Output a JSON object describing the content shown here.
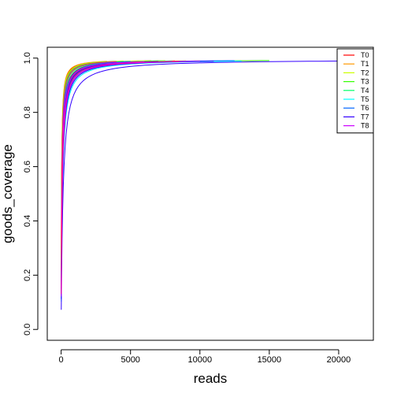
{
  "chart_data": {
    "type": "line",
    "title": "",
    "xlabel": "reads",
    "ylabel": "goods_coverage",
    "xlim": [
      -1000,
      22500
    ],
    "ylim": [
      -0.04,
      1.04
    ],
    "x_ticks": [
      0,
      5000,
      10000,
      15000,
      20000
    ],
    "x_tick_labels": [
      "0",
      "5000",
      "10000",
      "15000",
      "20000"
    ],
    "y_ticks": [
      0.0,
      0.2,
      0.4,
      0.6,
      0.8,
      1.0
    ],
    "y_tick_labels": [
      "0.0",
      "0.2",
      "0.4",
      "0.6",
      "0.8",
      "1.0"
    ],
    "grid": false,
    "legend_position": "top-right",
    "series": [
      {
        "name": "T0",
        "color": "#FF0000",
        "curves": [
          {
            "max_reads": 2300,
            "k": 0.06
          },
          {
            "max_reads": 3300,
            "k": 0.055
          },
          {
            "max_reads": 5500,
            "k": 0.035
          },
          {
            "max_reads": 8200,
            "k": 0.032
          },
          {
            "max_reads": 10000,
            "k": 0.026
          }
        ]
      },
      {
        "name": "T1",
        "color": "#FF9900",
        "curves": [
          {
            "max_reads": 3300,
            "k": 0.065
          },
          {
            "max_reads": 6500,
            "k": 0.045
          },
          {
            "max_reads": 9000,
            "k": 0.03
          }
        ]
      },
      {
        "name": "T2",
        "color": "#CCFF00",
        "curves": [
          {
            "max_reads": 4500,
            "k": 0.055
          },
          {
            "max_reads": 7500,
            "k": 0.04
          }
        ]
      },
      {
        "name": "T3",
        "color": "#33FF00",
        "curves": [
          {
            "max_reads": 15000,
            "k": 0.022
          },
          {
            "max_reads": 7000,
            "k": 0.035
          },
          {
            "max_reads": 4000,
            "k": 0.05
          }
        ]
      },
      {
        "name": "T4",
        "color": "#00FF66",
        "curves": [
          {
            "max_reads": 8000,
            "k": 0.03
          },
          {
            "max_reads": 5000,
            "k": 0.042
          }
        ]
      },
      {
        "name": "T5",
        "color": "#00FFFF",
        "curves": [
          {
            "max_reads": 13000,
            "k": 0.018
          },
          {
            "max_reads": 9000,
            "k": 0.02
          },
          {
            "max_reads": 6000,
            "k": 0.03
          }
        ]
      },
      {
        "name": "T6",
        "color": "#0066FF",
        "curves": [
          {
            "max_reads": 12500,
            "k": 0.025
          },
          {
            "max_reads": 9500,
            "k": 0.022
          },
          {
            "max_reads": 5000,
            "k": 0.035
          }
        ]
      },
      {
        "name": "T7",
        "color": "#3300FF",
        "curves": [
          {
            "max_reads": 22500,
            "k": 0.012
          },
          {
            "max_reads": 11000,
            "k": 0.02
          },
          {
            "max_reads": 7000,
            "k": 0.028
          }
        ]
      },
      {
        "name": "T8",
        "color": "#CC00FF",
        "curves": [
          {
            "max_reads": 10000,
            "k": 0.022
          },
          {
            "max_reads": 6000,
            "k": 0.03
          }
        ]
      },
      {
        "name": "",
        "color": "#FF0099",
        "curves": [
          {
            "max_reads": 8500,
            "k": 0.024
          },
          {
            "max_reads": 4000,
            "k": 0.045
          }
        ]
      }
    ]
  }
}
